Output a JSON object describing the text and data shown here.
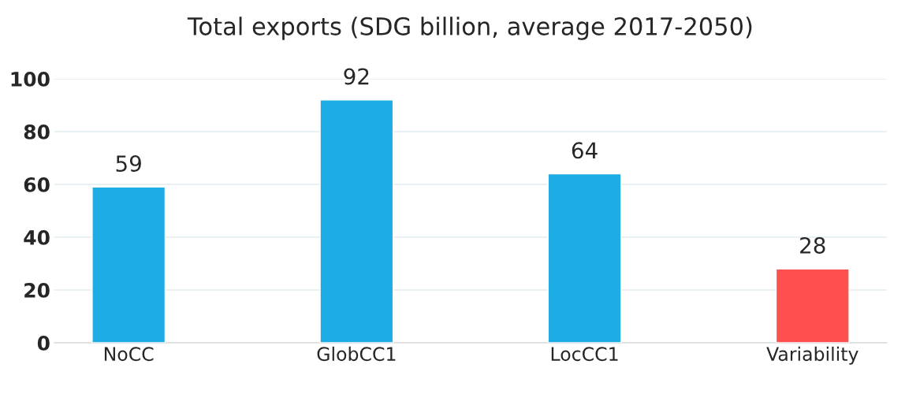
{
  "chart_data": {
    "type": "bar",
    "title": "Total exports (SDG billion, average 2017-2050)",
    "categories": [
      "NoCC",
      "GlobCC1",
      "LocCC1",
      "Variability"
    ],
    "values": [
      59,
      92,
      64,
      28
    ],
    "colors": [
      "#1eace4",
      "#1eace4",
      "#1eace4",
      "#ff5050"
    ],
    "ylim": [
      0,
      100
    ],
    "yticks": [
      0,
      20,
      40,
      60,
      80,
      100
    ],
    "grid": "y",
    "data_labels": true
  }
}
